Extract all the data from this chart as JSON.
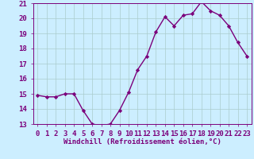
{
  "hours": [
    0,
    1,
    2,
    3,
    4,
    5,
    6,
    7,
    8,
    9,
    10,
    11,
    12,
    13,
    14,
    15,
    16,
    17,
    18,
    19,
    20,
    21,
    22,
    23
  ],
  "values": [
    14.9,
    14.8,
    14.8,
    15.0,
    15.0,
    13.9,
    13.0,
    12.9,
    13.0,
    13.9,
    15.1,
    16.6,
    17.5,
    19.1,
    20.1,
    19.5,
    20.2,
    20.3,
    21.1,
    20.5,
    20.2,
    19.5,
    18.4,
    17.5
  ],
  "line_color": "#7b007b",
  "marker": "D",
  "marker_size": 2.2,
  "bg_color": "#cceeff",
  "grid_color": "#aacccc",
  "title": "Windchill (Refroidissement éolien,°C)",
  "ylim": [
    13,
    21
  ],
  "yticks": [
    13,
    14,
    15,
    16,
    17,
    18,
    19,
    20,
    21
  ],
  "tick_fontsize": 6.5,
  "xlabel_fontsize": 6.5,
  "line_width": 1.0,
  "label_color": "#7b007b"
}
